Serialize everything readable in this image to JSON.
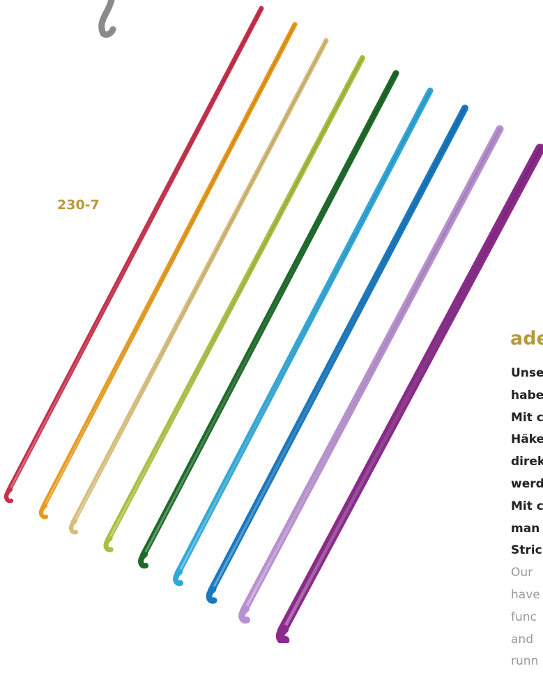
{
  "product_code": "230-7",
  "heading": "ade",
  "german_lines": [
    "Unse",
    "habe",
    "Mit c",
    "Häke",
    "direk",
    "werd",
    "Mit c",
    "man",
    "Stric"
  ],
  "english_lines": [
    "Our",
    "have",
    "func",
    "and",
    "runn"
  ]
}
